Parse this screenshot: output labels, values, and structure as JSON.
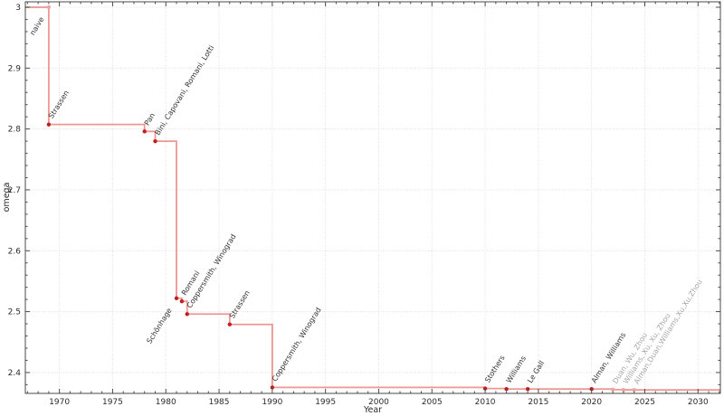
{
  "figure": {
    "background": "#ffffff"
  },
  "chart_data": {
    "type": "line",
    "subtype": "step-post",
    "title": "",
    "xlabel": "Year",
    "ylabel": "omega",
    "grid": true,
    "legend": "none",
    "xlim": [
      1966.8,
      2032.1
    ],
    "ylim": [
      2.3657,
      3.0089
    ],
    "x_ticks": {
      "major": [
        {
          "value": 1970,
          "label": "1970"
        },
        {
          "value": 1975,
          "label": "1975"
        },
        {
          "value": 1980,
          "label": "1980"
        },
        {
          "value": 1985,
          "label": "1985"
        },
        {
          "value": 1990,
          "label": "1990"
        },
        {
          "value": 1995,
          "label": "1995"
        },
        {
          "value": 2000,
          "label": "2000"
        },
        {
          "value": 2005,
          "label": "2005"
        },
        {
          "value": 2010,
          "label": "2010"
        },
        {
          "value": 2015,
          "label": "2015"
        },
        {
          "value": 2020,
          "label": "2020"
        },
        {
          "value": 2025,
          "label": "2025"
        },
        {
          "value": 2030,
          "label": "2030"
        }
      ],
      "minor_step": 1
    },
    "y_ticks": {
      "major": [
        {
          "value": 3.0,
          "label": "3"
        },
        {
          "value": 2.9,
          "label": "2.9"
        },
        {
          "value": 2.8,
          "label": "2.8"
        },
        {
          "value": 2.7,
          "label": "2.7"
        },
        {
          "value": 2.6,
          "label": "2.6"
        },
        {
          "value": 2.5,
          "label": "2.5"
        },
        {
          "value": 2.4,
          "label": "2.4"
        }
      ],
      "minor_step": 0.02
    },
    "start_level": {
      "omega": 3.0,
      "from_left_edge": true
    },
    "points": [
      {
        "year": 1969,
        "omega": 3.0,
        "label": "naive",
        "label_side": "below",
        "faded_marker": true,
        "faded_label": false
      },
      {
        "year": 1969,
        "omega": 2.8074,
        "label": "Strassen",
        "label_side": "above",
        "faded_marker": false,
        "faded_label": false
      },
      {
        "year": 1978,
        "omega": 2.796,
        "label": "Pan",
        "label_side": "above",
        "faded_marker": false,
        "faded_label": false
      },
      {
        "year": 1979,
        "omega": 2.7799,
        "label": "Bini, Capovani, Romani, Lotti",
        "label_side": "above",
        "faded_marker": false,
        "faded_label": false
      },
      {
        "year": 1981,
        "omega": 2.522,
        "label": "Schönhage",
        "label_side": "below",
        "faded_marker": false,
        "faded_label": false
      },
      {
        "year": 1981.5,
        "omega": 2.517,
        "label": "Romani",
        "label_side": "above",
        "faded_marker": false,
        "faded_label": false
      },
      {
        "year": 1982,
        "omega": 2.496,
        "label": "Coppersmith, Winograd",
        "label_side": "above",
        "faded_marker": false,
        "faded_label": false
      },
      {
        "year": 1986,
        "omega": 2.479,
        "label": "Strassen",
        "label_side": "above",
        "faded_marker": false,
        "faded_label": false
      },
      {
        "year": 1990,
        "omega": 2.3755,
        "label": "Coppersmith, Winograd",
        "label_side": "above",
        "faded_marker": false,
        "faded_label": false
      },
      {
        "year": 2010,
        "omega": 2.3737,
        "label": "Stothers",
        "label_side": "above",
        "faded_marker": false,
        "faded_label": false
      },
      {
        "year": 2012,
        "omega": 2.3729,
        "label": "Williams",
        "label_side": "above",
        "faded_marker": false,
        "faded_label": false
      },
      {
        "year": 2014,
        "omega": 2.3728639,
        "label": "Le Gall",
        "label_side": "above",
        "faded_marker": false,
        "faded_label": false
      },
      {
        "year": 2020,
        "omega": 2.3728596,
        "label": "Alman, Williams",
        "label_side": "above",
        "faded_marker": false,
        "faded_label": false
      },
      {
        "year": 2022,
        "omega": 2.37188,
        "label": "Duan, Wu, Zhou",
        "label_side": "above",
        "faded_marker": true,
        "faded_label": true
      },
      {
        "year": 2023,
        "omega": 2.371552,
        "label": "Williams, Xu, Xu, Zhou",
        "label_side": "above",
        "faded_marker": true,
        "faded_label": true
      },
      {
        "year": 2024,
        "omega": 2.371339,
        "label": "Alman,Duan,Williams,Xu,Xu,Zhou",
        "label_side": "above",
        "faded_marker": true,
        "faded_label": true
      }
    ],
    "colors": {
      "line": "rgba(222,48,40,0.5)",
      "marker": "#bf1f1f",
      "marker_faded": "#f0a4a4",
      "label": "#333333",
      "label_faded": "#a6a6a6",
      "grid": "#e0e0e0",
      "axis": "#4a4a4a",
      "tick_label": "#2b2b2b"
    }
  }
}
